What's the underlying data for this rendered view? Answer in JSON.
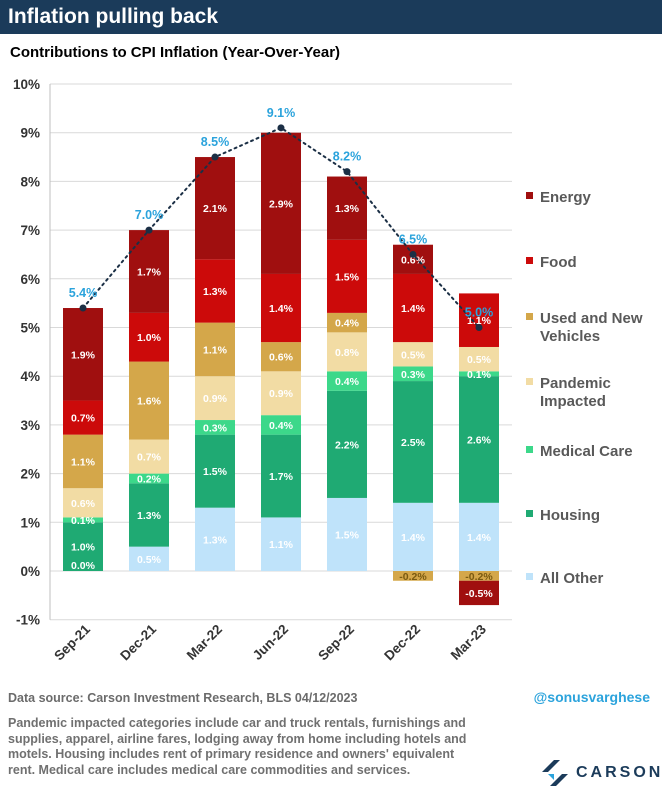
{
  "header": {
    "headline": "Inflation pulling back",
    "subtitle": "Contributions to CPI Inflation (Year-Over-Year)"
  },
  "chart_data": {
    "type": "bar",
    "stacked": true,
    "categories": [
      "Sep-21",
      "Dec-21",
      "Mar-22",
      "Jun-22",
      "Sep-22",
      "Dec-22",
      "Mar-23"
    ],
    "ylim": [
      -1,
      10
    ],
    "yticks": [
      "-1%",
      "0%",
      "1%",
      "2%",
      "3%",
      "4%",
      "5%",
      "6%",
      "7%",
      "8%",
      "9%",
      "10%"
    ],
    "grid": true,
    "legend_position": "right",
    "series": [
      {
        "name": "All Other",
        "color": "#bfe3fa",
        "label_color": "#ffffff",
        "values": [
          0.0,
          0.5,
          1.3,
          1.1,
          1.5,
          1.4,
          1.4
        ],
        "labels": [
          "",
          "0.5%",
          "1.3%",
          "1.1%",
          "1.5%",
          "1.4%",
          "1.4%"
        ]
      },
      {
        "name": "Housing",
        "color": "#1faa73",
        "label_color": "#ffffff",
        "values": [
          1.0,
          1.3,
          1.5,
          1.7,
          2.2,
          2.5,
          2.6
        ],
        "labels": [
          "1.0%",
          "1.3%",
          "1.5%",
          "1.7%",
          "2.2%",
          "2.5%",
          "2.6%"
        ]
      },
      {
        "name": "Medical Care",
        "color": "#3cd88a",
        "label_color": "#ffffff",
        "values": [
          0.1,
          0.2,
          0.3,
          0.4,
          0.4,
          0.3,
          0.1
        ],
        "labels": [
          "0.1%",
          "0.2%",
          "0.3%",
          "0.4%",
          "0.4%",
          "0.3%",
          "0.1%"
        ]
      },
      {
        "name": "Pandemic Impacted",
        "color": "#f2dca4",
        "label_color": "#ffffff",
        "values": [
          0.6,
          0.7,
          0.9,
          0.9,
          0.8,
          0.5,
          0.5
        ],
        "labels": [
          "0.6%",
          "0.7%",
          "0.9%",
          "0.9%",
          "0.8%",
          "0.5%",
          "0.5%"
        ]
      },
      {
        "name": "Used and New Vehicles",
        "color": "#d4a74a",
        "label_color": "#ffffff",
        "values": [
          1.1,
          1.6,
          1.1,
          0.6,
          0.4,
          -0.2,
          -0.2
        ],
        "labels": [
          "1.1%",
          "1.6%",
          "1.1%",
          "0.6%",
          "0.4%",
          "-0.2%",
          "-0.2%"
        ]
      },
      {
        "name": "Food",
        "color": "#cc0a0a",
        "label_color": "#ffffff",
        "values": [
          0.7,
          1.0,
          1.3,
          1.4,
          1.5,
          1.4,
          1.1
        ],
        "labels": [
          "0.7%",
          "1.0%",
          "1.3%",
          "1.4%",
          "1.5%",
          "1.4%",
          "1.1%"
        ]
      },
      {
        "name": "Energy",
        "color": "#a00f0f",
        "label_color": "#ffffff",
        "values": [
          1.9,
          1.7,
          2.1,
          2.9,
          1.3,
          0.6,
          -0.5
        ],
        "labels": [
          "1.9%",
          "1.7%",
          "2.1%",
          "2.9%",
          "1.3%",
          "0.6%",
          "-0.5%"
        ]
      }
    ],
    "bottom_label": "0.0%",
    "total": {
      "values": [
        5.4,
        7.0,
        8.5,
        9.1,
        8.2,
        6.5,
        5.0
      ],
      "labels": [
        "5.4%",
        "7.0%",
        "8.5%",
        "9.1%",
        "8.2%",
        "6.5%",
        "5.0%"
      ],
      "label_color": "#2ba3dc",
      "line_color": "#1b2f45"
    },
    "legend_order": [
      {
        "name": "Energy",
        "lines": [
          "Energy"
        ],
        "color": "#a00f0f"
      },
      {
        "name": "Food",
        "lines": [
          "Food"
        ],
        "color": "#cc0a0a"
      },
      {
        "name": "Used and New Vehicles",
        "lines": [
          "Used and New",
          "Vehicles"
        ],
        "color": "#d4a74a"
      },
      {
        "name": "Pandemic Impacted",
        "lines": [
          "Pandemic",
          "Impacted"
        ],
        "color": "#f2dca4"
      },
      {
        "name": "Medical Care",
        "lines": [
          "Medical Care"
        ],
        "color": "#3cd88a"
      },
      {
        "name": "Housing",
        "lines": [
          "Housing"
        ],
        "color": "#1faa73"
      },
      {
        "name": "All Other",
        "lines": [
          "All Other"
        ],
        "color": "#bfe3fa"
      }
    ]
  },
  "footer": {
    "source": "Data source: Carson Investment Research, BLS   04/12/2023",
    "handle": "@sonusvarghese",
    "note": "Pandemic impacted categories include car and truck rentals, furnishings and supplies, apparel, airline fares, lodging away from home including hotels and motels. Housing includes rent of primary residence and owners' equivalent rent. Medical care includes medical care commodities and services.",
    "brand": "CARSON",
    "brand_color": "#1b3b5a",
    "brand_accent": "#2ba3dc"
  }
}
